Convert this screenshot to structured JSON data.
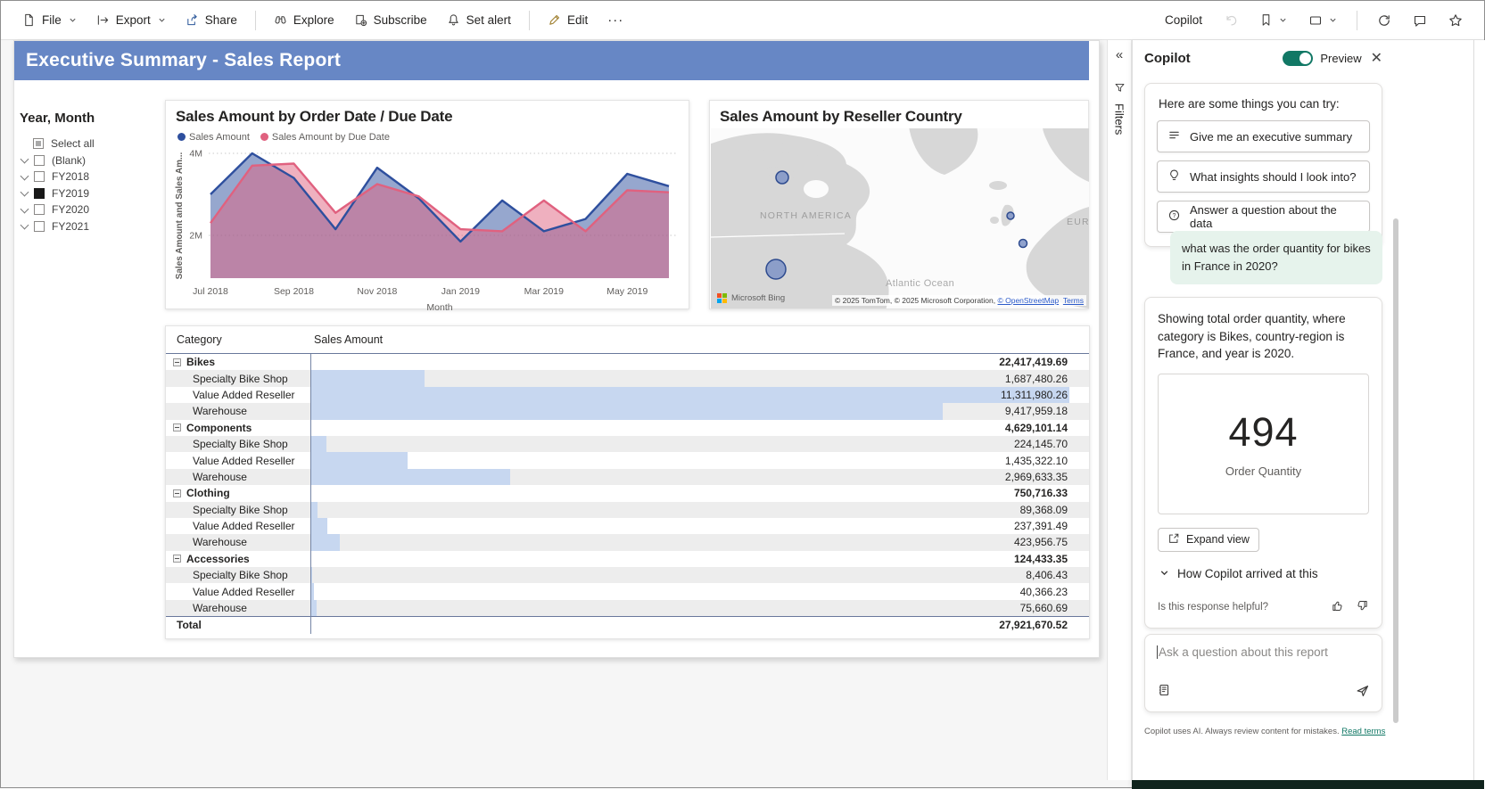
{
  "toolbar": {
    "file": "File",
    "export": "Export",
    "share": "Share",
    "explore": "Explore",
    "subscribe": "Subscribe",
    "set_alert": "Set alert",
    "edit": "Edit",
    "more": "···",
    "copilot": "Copilot"
  },
  "banner": {
    "title": "Executive Summary - Sales Report"
  },
  "slicer": {
    "title": "Year, Month",
    "items": [
      {
        "label": "Select all",
        "state": "partial",
        "chevron": false
      },
      {
        "label": "(Blank)",
        "state": "unchecked",
        "chevron": true
      },
      {
        "label": "FY2018",
        "state": "unchecked",
        "chevron": true
      },
      {
        "label": "FY2019",
        "state": "checked",
        "chevron": true
      },
      {
        "label": "FY2020",
        "state": "unchecked",
        "chevron": true
      },
      {
        "label": "FY2021",
        "state": "unchecked",
        "chevron": true
      }
    ]
  },
  "chart_data": [
    {
      "type": "area",
      "title": "Sales Amount by Order Date / Due Date",
      "x": [
        "Jul 2018",
        "Aug 2018",
        "Sep 2018",
        "Oct 2018",
        "Nov 2018",
        "Dec 2018",
        "Jan 2019",
        "Feb 2019",
        "Mar 2019",
        "Apr 2019",
        "May 2019",
        "Jun 2019"
      ],
      "x_ticks": [
        "Jul 2018",
        "Sep 2018",
        "Nov 2018",
        "Jan 2019",
        "Mar 2019",
        "May 2019"
      ],
      "xlabel": "Month",
      "ylabel": "Sales Amount and Sales Am...",
      "y_gridlines": [
        4,
        2
      ],
      "y_unit": "M",
      "ylim": [
        1,
        4.2
      ],
      "series": [
        {
          "name": "Sales Amount",
          "color": "#2E4F9E",
          "fill": "rgba(46,79,158,0.50)",
          "values": [
            3.0,
            4.0,
            3.4,
            2.15,
            3.65,
            2.9,
            1.85,
            2.85,
            2.1,
            2.4,
            3.5,
            3.2
          ]
        },
        {
          "name": "Sales Amount by Due Date",
          "color": "#E0617F",
          "fill": "rgba(224,97,127,0.50)",
          "values": [
            2.3,
            3.7,
            3.75,
            2.55,
            3.25,
            2.95,
            2.15,
            2.1,
            2.85,
            2.1,
            3.1,
            3.05
          ]
        }
      ]
    },
    {
      "type": "map",
      "title": "Sales Amount by Reseller Country",
      "region_labels": [
        {
          "text": "NORTH AMERICA",
          "x": 55,
          "y": 101
        },
        {
          "text": "EUROPE",
          "x": 399,
          "y": 108
        }
      ],
      "ocean_label": {
        "text": "Atlantic Ocean",
        "x": 196,
        "y": 177
      },
      "bubbles": [
        {
          "name": "Canada",
          "x": 80,
          "y": 55,
          "r": 7
        },
        {
          "name": "United States",
          "x": 73,
          "y": 158,
          "r": 11
        },
        {
          "name": "United Kingdom",
          "x": 336,
          "y": 98,
          "r": 4
        },
        {
          "name": "France",
          "x": 350,
          "y": 129,
          "r": 4.5
        }
      ],
      "logo_text": "Microsoft Bing",
      "attribution": "© 2025 TomTom, © 2025 Microsoft Corporation, ",
      "osm_link": "© OpenStreetMap",
      "terms_link": "Terms"
    },
    {
      "type": "table",
      "columns": [
        "Category",
        "Sales Amount"
      ],
      "rows": [
        {
          "category": "Bikes",
          "value": "22,417,419.69",
          "level": "group"
        },
        {
          "category": "Specialty Bike Shop",
          "value": "1,687,480.26",
          "level": "detail",
          "bar_pct": 14.92
        },
        {
          "category": "Value Added Reseller",
          "value": "11,311,980.26",
          "level": "detail",
          "bar_pct": 100
        },
        {
          "category": "Warehouse",
          "value": "9,417,959.18",
          "level": "detail",
          "bar_pct": 83.26
        },
        {
          "category": "Components",
          "value": "4,629,101.14",
          "level": "group"
        },
        {
          "category": "Specialty Bike Shop",
          "value": "224,145.70",
          "level": "detail",
          "bar_pct": 1.98
        },
        {
          "category": "Value Added Reseller",
          "value": "1,435,322.10",
          "level": "detail",
          "bar_pct": 12.69
        },
        {
          "category": "Warehouse",
          "value": "2,969,633.35",
          "level": "detail",
          "bar_pct": 26.25
        },
        {
          "category": "Clothing",
          "value": "750,716.33",
          "level": "group"
        },
        {
          "category": "Specialty Bike Shop",
          "value": "89,368.09",
          "level": "detail",
          "bar_pct": 0.79
        },
        {
          "category": "Value Added Reseller",
          "value": "237,391.49",
          "level": "detail",
          "bar_pct": 2.1
        },
        {
          "category": "Warehouse",
          "value": "423,956.75",
          "level": "detail",
          "bar_pct": 3.75
        },
        {
          "category": "Accessories",
          "value": "124,433.35",
          "level": "group"
        },
        {
          "category": "Specialty Bike Shop",
          "value": "8,406.43",
          "level": "detail",
          "bar_pct": 0.07
        },
        {
          "category": "Value Added Reseller",
          "value": "40,366.23",
          "level": "detail",
          "bar_pct": 0.36
        },
        {
          "category": "Warehouse",
          "value": "75,660.69",
          "level": "detail",
          "bar_pct": 0.67
        },
        {
          "category": "Total",
          "value": "27,921,670.52",
          "level": "total"
        }
      ]
    }
  ],
  "filters_pane": {
    "label": "Filters"
  },
  "copilot": {
    "header": {
      "title": "Copilot",
      "preview_label": "Preview"
    },
    "suggestions": {
      "intro": "Here are some things you can try:",
      "items": [
        {
          "icon": "list-icon",
          "label": "Give me an executive summary"
        },
        {
          "icon": "lightbulb-icon",
          "label": "What insights should I look into?"
        },
        {
          "icon": "question-circle-icon",
          "label": "Answer a question about the data"
        }
      ]
    },
    "user_message": "what was the order quantity for bikes in France in 2020?",
    "response": {
      "text": "Showing total order quantity, where category is Bikes, country-region is France, and year is 2020.",
      "value": "494",
      "value_label": "Order Quantity",
      "expand_button": "Expand view",
      "how_arrived": "How Copilot arrived at this",
      "feedback_prompt": "Is this response helpful?"
    },
    "input": {
      "placeholder": "Ask a question about this report"
    },
    "footer": {
      "text": "Copilot uses AI. Always review content for mistakes.",
      "link": "Read terms"
    },
    "accent_color": "#117865"
  }
}
